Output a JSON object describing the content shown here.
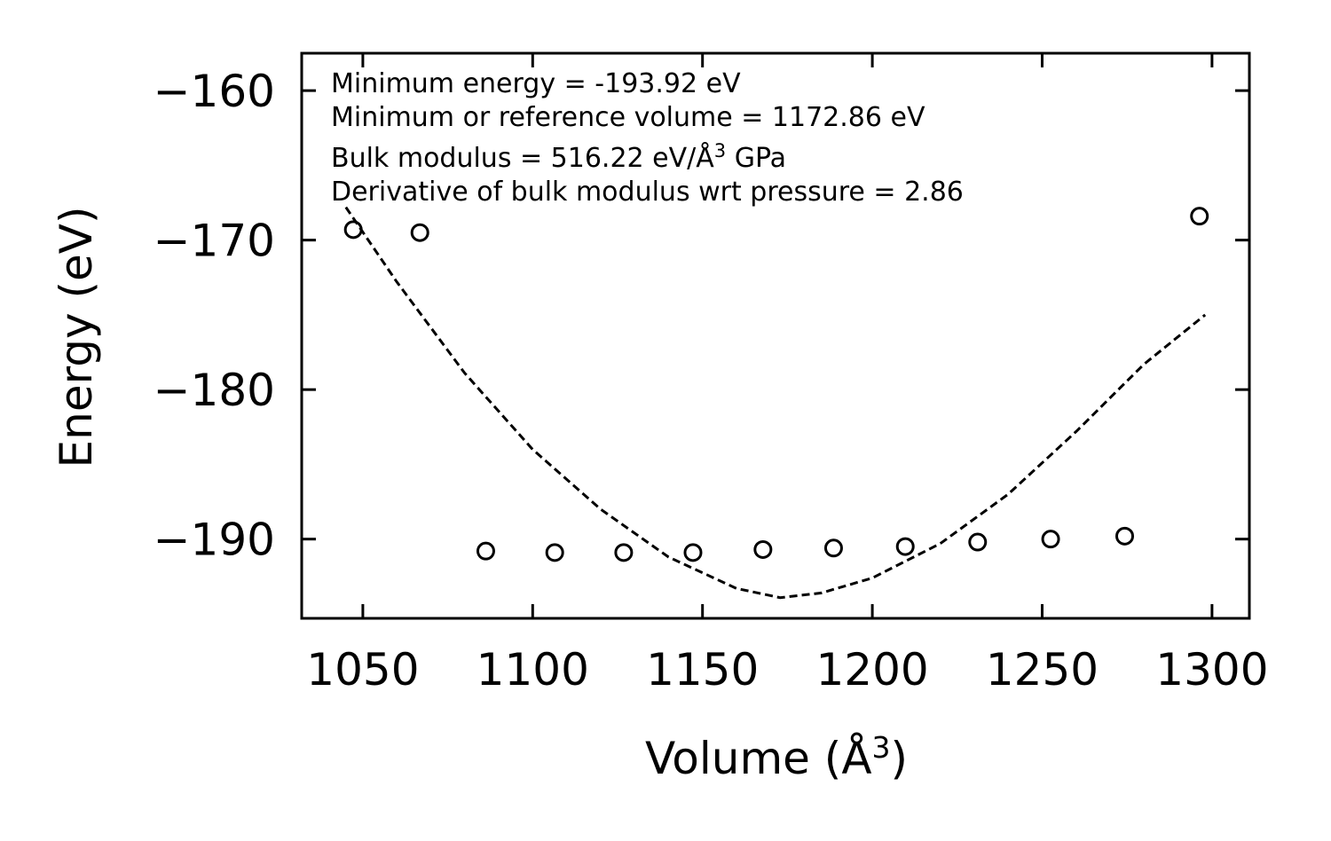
{
  "chart_data": {
    "type": "scatter",
    "xlabel": "Volume (Å",
    "xlabel_sup": "3",
    "xlabel_close": ")",
    "ylabel": "Energy (eV)",
    "xlim": [
      1032,
      1311
    ],
    "ylim": [
      -195.3,
      -157.5
    ],
    "xticks": [
      1050,
      1100,
      1150,
      1200,
      1250,
      1300
    ],
    "yticks": [
      -160,
      -170,
      -180,
      -190
    ],
    "xtick_labels": [
      "1050",
      "1100",
      "1150",
      "1200",
      "1250",
      "1300"
    ],
    "ytick_labels": [
      "−160",
      "−170",
      "−180",
      "−190"
    ],
    "annotations": [
      {
        "text": "Minimum energy = -193.92 eV"
      },
      {
        "text": "Minimum or reference volume = 1172.86 eV"
      },
      {
        "text": "Bulk modulus = 516.22 eV/Å",
        "sup": "3",
        "suffix": " GPa"
      },
      {
        "text": "Derivative of bulk modulus wrt pressure = 2.86"
      }
    ],
    "points": [
      {
        "x": 1047.2,
        "y": -169.3
      },
      {
        "x": 1066.8,
        "y": -169.5
      },
      {
        "x": 1086.2,
        "y": -190.8
      },
      {
        "x": 1106.5,
        "y": -190.9
      },
      {
        "x": 1126.8,
        "y": -190.9
      },
      {
        "x": 1147.2,
        "y": -190.9
      },
      {
        "x": 1167.8,
        "y": -190.7
      },
      {
        "x": 1188.6,
        "y": -190.6
      },
      {
        "x": 1209.7,
        "y": -190.5
      },
      {
        "x": 1231.0,
        "y": -190.2
      },
      {
        "x": 1252.5,
        "y": -190.0
      },
      {
        "x": 1274.3,
        "y": -189.8
      },
      {
        "x": 1296.3,
        "y": -168.4
      }
    ],
    "fit": {
      "style": "dashed",
      "x": [
        1045,
        1060,
        1080,
        1100,
        1120,
        1140,
        1160,
        1172.86,
        1185,
        1200,
        1220,
        1240,
        1260,
        1280,
        1298
      ],
      "y": [
        -167.8,
        -172.8,
        -178.9,
        -184.0,
        -188.0,
        -191.2,
        -193.3,
        -193.92,
        -193.6,
        -192.6,
        -190.3,
        -187.0,
        -182.8,
        -178.3,
        -175.0
      ]
    },
    "grid": false
  }
}
